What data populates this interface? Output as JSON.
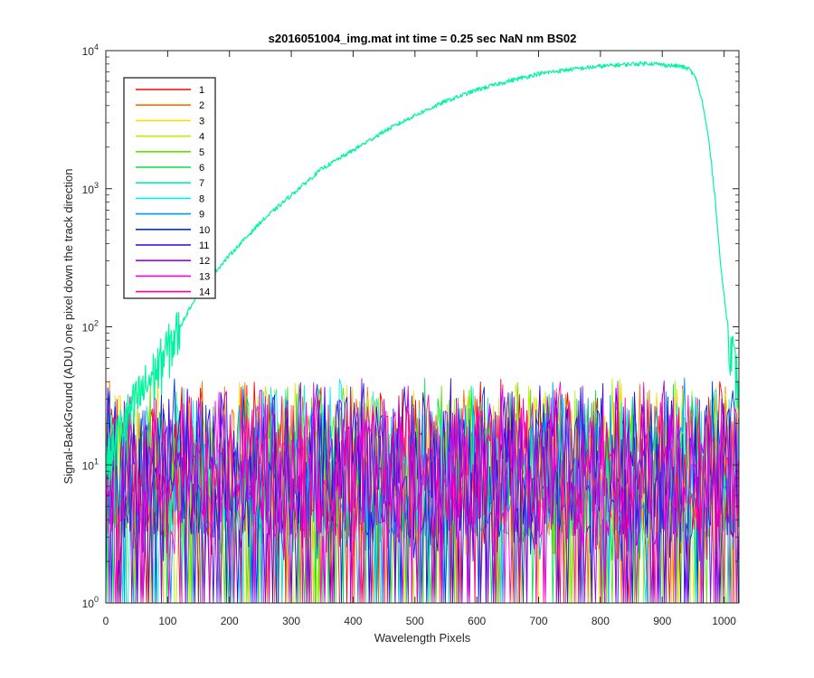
{
  "chart_data": {
    "type": "line",
    "title": "s2016051004_img.mat int time = 0.25 sec  NaN nm BS02",
    "xlabel": "Wavelength Pixels",
    "ylabel": "Signal-BackGround (ADU) one pixel down the track direction",
    "xlim": [
      0,
      1024
    ],
    "ylim": [
      1,
      10000
    ],
    "yscale": "log",
    "x_ticks": [
      "0",
      "100",
      "200",
      "300",
      "400",
      "500",
      "600",
      "700",
      "800",
      "900",
      "1000"
    ],
    "y_ticks": [
      {
        "base": "10",
        "exp": "0"
      },
      {
        "base": "10",
        "exp": "1"
      },
      {
        "base": "10",
        "exp": "2"
      },
      {
        "base": "10",
        "exp": "3"
      },
      {
        "base": "10",
        "exp": "4"
      }
    ],
    "grid": false,
    "legend_position": "top-left",
    "series": [
      {
        "name": "1",
        "color": "#ff0000",
        "profile": "noise"
      },
      {
        "name": "2",
        "color": "#ff6e00",
        "profile": "noise"
      },
      {
        "name": "3",
        "color": "#ffdc00",
        "profile": "noise"
      },
      {
        "name": "4",
        "color": "#b4f000",
        "profile": "noise"
      },
      {
        "name": "5",
        "color": "#5ae600",
        "profile": "noise"
      },
      {
        "name": "6",
        "color": "#00e641",
        "profile": "noise"
      },
      {
        "name": "7",
        "color": "#00f5a0",
        "profile": "signal",
        "x": [
          0,
          20,
          50,
          80,
          100,
          120,
          150,
          200,
          250,
          300,
          350,
          400,
          450,
          500,
          550,
          600,
          650,
          700,
          750,
          800,
          850,
          880,
          900,
          930,
          945,
          955,
          965,
          975,
          985,
          995,
          1005,
          1015,
          1024
        ],
        "y": [
          10,
          17,
          30,
          48,
          70,
          100,
          180,
          330,
          570,
          900,
          1400,
          1900,
          2600,
          3400,
          4300,
          5200,
          6000,
          6800,
          7300,
          7700,
          8000,
          8100,
          7900,
          7700,
          7300,
          6200,
          4200,
          2300,
          900,
          260,
          110,
          60,
          35
        ]
      },
      {
        "name": "8",
        "color": "#00f0f0",
        "profile": "noise"
      },
      {
        "name": "9",
        "color": "#0096ff",
        "profile": "noise"
      },
      {
        "name": "10",
        "color": "#0032e6",
        "profile": "noise"
      },
      {
        "name": "11",
        "color": "#3c00dc",
        "profile": "noise"
      },
      {
        "name": "12",
        "color": "#a000f0",
        "profile": "noise"
      },
      {
        "name": "13",
        "color": "#ff00e6",
        "profile": "noise"
      },
      {
        "name": "14",
        "color": "#ff0096",
        "profile": "noise"
      }
    ],
    "noise_range": [
      1,
      45
    ]
  }
}
